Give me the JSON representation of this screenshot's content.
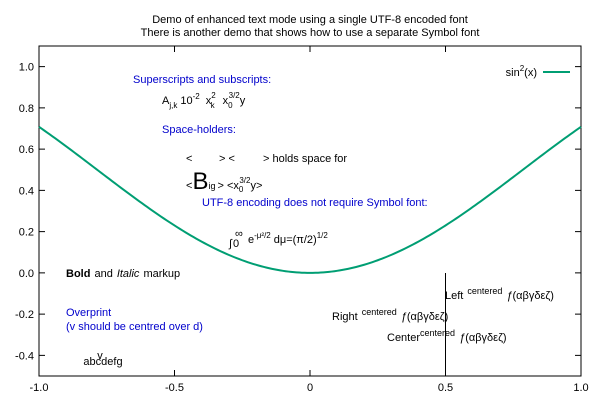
{
  "chart_data": {
    "type": "line",
    "title_lines": [
      "Demo of enhanced text mode using a single UTF-8 encoded font",
      "There is another demo that shows how to use a separate Symbol font"
    ],
    "xlim": [
      -1.0,
      1.0
    ],
    "ylim": [
      -0.5,
      1.1
    ],
    "x_ticks": [
      -1.0,
      -0.5,
      0.0,
      0.5,
      1.0
    ],
    "x_tick_labels": [
      "-1.0",
      "-0.5",
      "0",
      "0.5",
      "1.0"
    ],
    "y_ticks": [
      -0.4,
      -0.2,
      0.0,
      0.2,
      0.4,
      0.6,
      0.8,
      1.0
    ],
    "y_tick_labels": [
      "-0.4",
      "-0.2",
      "0.0",
      "0.2",
      "0.4",
      "0.6",
      "0.8",
      "1.0"
    ],
    "grid": false,
    "legend_position": "top-right",
    "series": [
      {
        "name_base": "sin",
        "name_sup": "2",
        "name_rest": "(x)",
        "color": "#009e73",
        "x": [
          -1.0,
          -0.9,
          -0.8,
          -0.7,
          -0.6,
          -0.5,
          -0.4,
          -0.3,
          -0.2,
          -0.1,
          0.0,
          0.1,
          0.2,
          0.3,
          0.4,
          0.5,
          0.6,
          0.7,
          0.8,
          0.9,
          1.0
        ],
        "y": [
          0.708,
          0.614,
          0.515,
          0.415,
          0.319,
          0.23,
          0.152,
          0.087,
          0.039,
          0.01,
          0.0,
          0.01,
          0.039,
          0.087,
          0.152,
          0.23,
          0.319,
          0.415,
          0.515,
          0.614,
          0.708
        ]
      }
    ],
    "vertical_marker_x": 0.5,
    "annotations": {
      "superscripts_heading": "Superscripts and subscripts:",
      "a_base": "A",
      "a_sub": "j,k",
      "ten_base": "10",
      "ten_sup": "-2",
      "x_base": "x",
      "x_sup": "2",
      "x_sub": "k",
      "x0_base": "x",
      "x0_sub": "0",
      "x0_sup": "3/2",
      "x0_tail": "y",
      "spaceholders_heading": "Space-holders:",
      "ph_open1": "<",
      "ph_close1": "> <",
      "ph_close2": "> holds space for",
      "big_open": "<",
      "big_B": "B",
      "big_sub": "ig",
      "big_tail": "> <x",
      "big_x_sub": "0",
      "big_x_sup": "3/2",
      "big_y": "y>",
      "utf8_note": "UTF-8 encoding does not require Symbol font:",
      "int_sign": "∫",
      "int_upper": "∞",
      "int_lower": "0",
      "int_e": "e",
      "int_exp": "-μ²/2",
      "int_dmu": "dμ=(π/2)",
      "int_pow": "1/2",
      "bold_word": "Bold",
      "and_word": "and",
      "italic_word": "Italic",
      "markup_word": "markup",
      "overprint_line1": "Overprint",
      "overprint_line2": "(v should be centred over d)",
      "overprint_v": "v",
      "overprint_text": "abcdefg",
      "left_label": "Left",
      "right_label": "Right",
      "center_label": "Center",
      "centered_sup": "centered",
      "greek_f": "ƒ",
      "greek_text": "(αβγδεζ)"
    }
  }
}
